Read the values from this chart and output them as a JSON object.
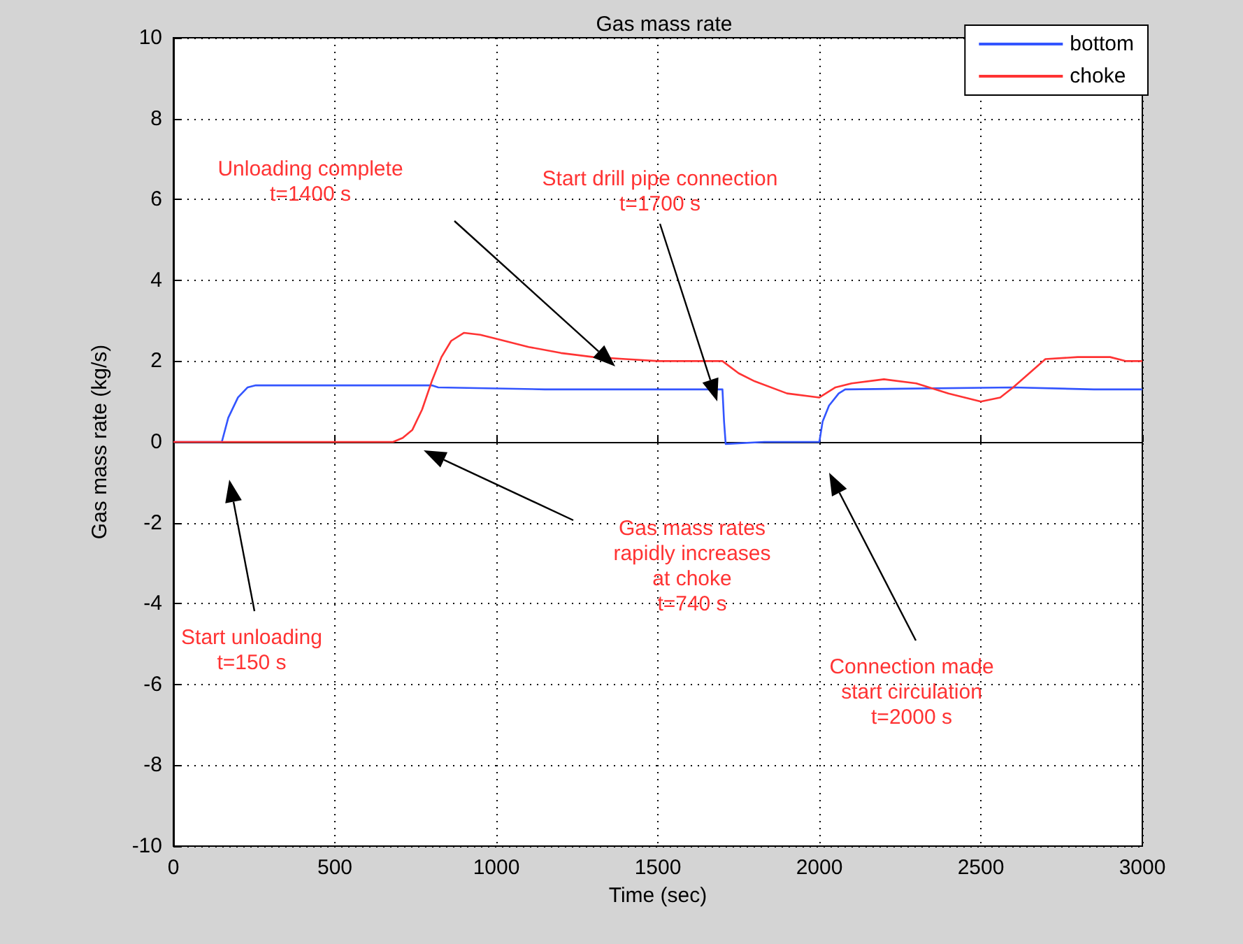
{
  "chart_data": {
    "type": "line",
    "title": "Gas mass rate",
    "xlabel": "Time (sec)",
    "ylabel": "Gas mass rate (kg/s)",
    "xlim": [
      0,
      3000
    ],
    "xticks": [
      0,
      500,
      1000,
      1500,
      2000,
      2500,
      3000
    ],
    "ylim": [
      -10,
      10
    ],
    "yticks": [
      -10,
      -8,
      -6,
      -4,
      -2,
      0,
      2,
      4,
      6,
      8,
      10
    ],
    "grid": true,
    "legend": "top right",
    "marker": "none",
    "line_style": "solid",
    "series": [
      {
        "name": "bottom",
        "color": "#3355ff",
        "x": [
          0,
          150,
          170,
          200,
          230,
          255,
          800,
          820,
          1150,
          1700,
          1705,
          1710,
          1830,
          1995,
          2000,
          2010,
          2030,
          2060,
          2080,
          2600,
          2850,
          3000
        ],
        "values": [
          0,
          0,
          0.6,
          1.1,
          1.35,
          1.4,
          1.4,
          1.35,
          1.3,
          1.3,
          0.5,
          -0.05,
          0,
          0,
          0,
          0.5,
          0.9,
          1.2,
          1.3,
          1.35,
          1.3,
          1.3
        ]
      },
      {
        "name": "choke",
        "color": "#ff3333",
        "x": [
          0,
          680,
          710,
          740,
          770,
          800,
          830,
          860,
          900,
          950,
          1000,
          1100,
          1200,
          1300,
          1400,
          1500,
          1700,
          1750,
          1800,
          1900,
          2000,
          2050,
          2100,
          2200,
          2300,
          2400,
          2500,
          2560,
          2600,
          2650,
          2700,
          2800,
          2900,
          2950,
          3000
        ],
        "values": [
          0,
          0,
          0.1,
          0.3,
          0.8,
          1.5,
          2.1,
          2.5,
          2.7,
          2.65,
          2.55,
          2.35,
          2.2,
          2.1,
          2.05,
          2.0,
          2.0,
          1.7,
          1.5,
          1.2,
          1.1,
          1.35,
          1.45,
          1.55,
          1.45,
          1.2,
          1.0,
          1.1,
          1.35,
          1.7,
          2.05,
          2.1,
          2.1,
          2.0,
          2.0
        ]
      }
    ],
    "annotations": [
      "Start unloading\nt=150 s",
      "Gas mass rates\nrapidly increases\nat choke\nt=740 s",
      "Unloading complete\nt=1400 s",
      "Start drill pipe connection\nt=1700 s",
      "Connection made\nstart circulation\nt=2000 s"
    ]
  }
}
